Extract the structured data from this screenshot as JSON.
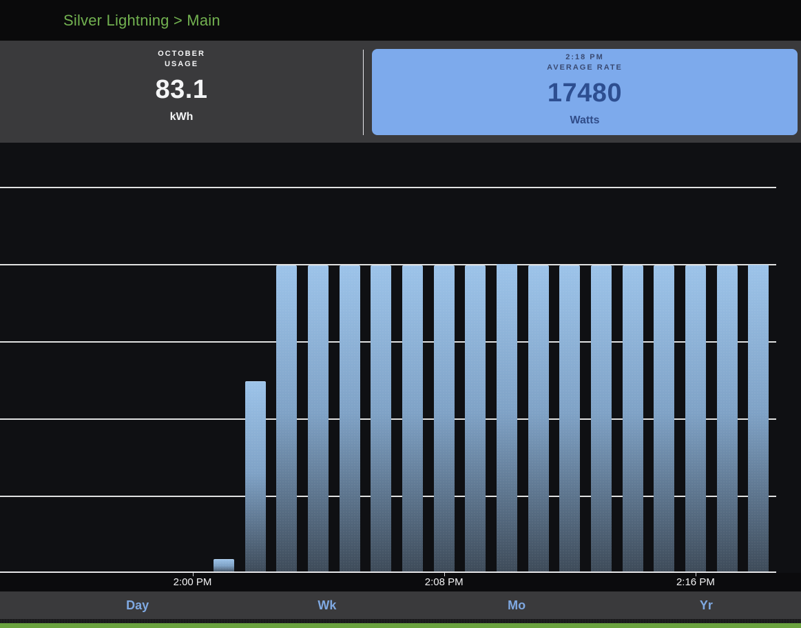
{
  "header": {
    "breadcrumb": "Silver Lightning > Main"
  },
  "stats": {
    "usage": {
      "line1": "OCTOBER",
      "line2": "USAGE",
      "value": "83.1",
      "unit": "kWh"
    },
    "rate": {
      "line1": "2:18 PM",
      "line2": "AVERAGE RATE",
      "value": "17480",
      "unit": "Watts"
    }
  },
  "tabs": [
    {
      "label": "Day"
    },
    {
      "label": "Wk"
    },
    {
      "label": "Mo"
    },
    {
      "label": "Yr"
    }
  ],
  "chart_data": {
    "type": "bar",
    "title": "",
    "xlabel": "",
    "ylabel": "",
    "y_unit": "Watts",
    "grid": true,
    "ylim": [
      0,
      24460
    ],
    "ticks": [
      {
        "label": "2:00 PM",
        "minute": 0
      },
      {
        "label": "2:08 PM",
        "minute": 8
      },
      {
        "label": "2:16 PM",
        "minute": 16
      }
    ],
    "series": [
      {
        "time": "2:01 PM",
        "minute": 1,
        "value": 780
      },
      {
        "time": "2:02 PM",
        "minute": 2,
        "value": 10900
      },
      {
        "time": "2:03 PM",
        "minute": 3,
        "value": 17480
      },
      {
        "time": "2:04 PM",
        "minute": 4,
        "value": 17480
      },
      {
        "time": "2:05 PM",
        "minute": 5,
        "value": 17480
      },
      {
        "time": "2:06 PM",
        "minute": 6,
        "value": 17480
      },
      {
        "time": "2:07 PM",
        "minute": 7,
        "value": 17480
      },
      {
        "time": "2:08 PM",
        "minute": 8,
        "value": 17480
      },
      {
        "time": "2:09 PM",
        "minute": 9,
        "value": 17480
      },
      {
        "time": "2:10 PM",
        "minute": 10,
        "value": 17560
      },
      {
        "time": "2:11 PM",
        "minute": 11,
        "value": 17480
      },
      {
        "time": "2:12 PM",
        "minute": 12,
        "value": 17480
      },
      {
        "time": "2:13 PM",
        "minute": 13,
        "value": 17480
      },
      {
        "time": "2:14 PM",
        "minute": 14,
        "value": 17480
      },
      {
        "time": "2:15 PM",
        "minute": 15,
        "value": 17480
      },
      {
        "time": "2:16 PM",
        "minute": 16,
        "value": 17480
      },
      {
        "time": "2:17 PM",
        "minute": 17,
        "value": 17480
      },
      {
        "time": "2:18 PM",
        "minute": 18,
        "value": 17520
      }
    ]
  },
  "colors": {
    "breadcrumb_green": "#72b150",
    "panel_bg": "#3a3a3c",
    "rate_card_bg": "#7daaec",
    "rate_card_text": "#2d4e90",
    "bar_gradient_top": "#9cc3e9",
    "bar_gradient_bottom": "#3d4a58",
    "tab_text_blue": "#7fa9e2",
    "bottom_bar_green": "#6aa23e"
  }
}
